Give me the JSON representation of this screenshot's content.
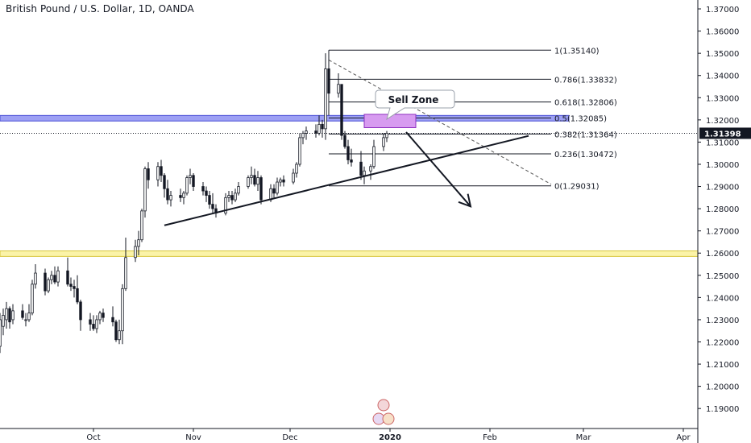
{
  "header": {
    "title": "British Pound / U.S. Dollar, 1D, OANDA"
  },
  "chart_data": {
    "type": "candlestick",
    "symbol": "GBPUSD",
    "interval": "1D",
    "source": "OANDA",
    "ylim": [
      1.181,
      1.374
    ],
    "y_ticks": [
      "1.19000",
      "1.20000",
      "1.21000",
      "1.22000",
      "1.23000",
      "1.24000",
      "1.25000",
      "1.26000",
      "1.27000",
      "1.28000",
      "1.29000",
      "1.30000",
      "1.31000",
      "1.32000",
      "1.33000",
      "1.34000",
      "1.35000",
      "1.36000",
      "1.37000"
    ],
    "x_ticks": [
      {
        "label": "Oct",
        "date": "2019-10-01",
        "bold": false
      },
      {
        "label": "Nov",
        "date": "2019-11-01",
        "bold": false
      },
      {
        "label": "Dec",
        "date": "2019-12-01",
        "bold": false
      },
      {
        "label": "2020",
        "date": "2020-01-01",
        "bold": true
      },
      {
        "label": "Feb",
        "date": "2020-02-01",
        "bold": false
      },
      {
        "label": "Mar",
        "date": "2020-03-01",
        "bold": false
      },
      {
        "label": "Apr",
        "date": "2020-04-01",
        "bold": false
      }
    ],
    "current_price": "1.31398",
    "candles": [
      {
        "d": "2019-08-30",
        "o": 1.215,
        "h": 1.224,
        "l": 1.206,
        "c": 1.222
      },
      {
        "d": "2019-09-02",
        "o": 1.218,
        "h": 1.233,
        "l": 1.215,
        "c": 1.23
      },
      {
        "d": "2019-09-03",
        "o": 1.227,
        "h": 1.235,
        "l": 1.223,
        "c": 1.232
      },
      {
        "d": "2019-09-04",
        "o": 1.23,
        "h": 1.238,
        "l": 1.226,
        "c": 1.235
      },
      {
        "d": "2019-09-05",
        "o": 1.235,
        "h": 1.236,
        "l": 1.226,
        "c": 1.229
      },
      {
        "d": "2019-09-06",
        "o": 1.23,
        "h": 1.237,
        "l": 1.228,
        "c": 1.234
      },
      {
        "d": "2019-09-09",
        "o": 1.234,
        "h": 1.237,
        "l": 1.23,
        "c": 1.231
      },
      {
        "d": "2019-09-10",
        "o": 1.23,
        "h": 1.233,
        "l": 1.227,
        "c": 1.23
      },
      {
        "d": "2019-09-11",
        "o": 1.23,
        "h": 1.237,
        "l": 1.229,
        "c": 1.233
      },
      {
        "d": "2019-09-12",
        "o": 1.233,
        "h": 1.248,
        "l": 1.232,
        "c": 1.246
      },
      {
        "d": "2019-09-13",
        "o": 1.246,
        "h": 1.255,
        "l": 1.244,
        "c": 1.251
      },
      {
        "d": "2019-09-16",
        "o": 1.251,
        "h": 1.253,
        "l": 1.241,
        "c": 1.243
      },
      {
        "d": "2019-09-17",
        "o": 1.243,
        "h": 1.249,
        "l": 1.242,
        "c": 1.248
      },
      {
        "d": "2019-09-18",
        "o": 1.248,
        "h": 1.252,
        "l": 1.246,
        "c": 1.25
      },
      {
        "d": "2019-09-19",
        "o": 1.25,
        "h": 1.254,
        "l": 1.246,
        "c": 1.247
      },
      {
        "d": "2019-09-20",
        "o": 1.247,
        "h": 1.254,
        "l": 1.245,
        "c": 1.252
      },
      {
        "d": "2019-09-23",
        "o": 1.252,
        "h": 1.258,
        "l": 1.245,
        "c": 1.246
      },
      {
        "d": "2019-09-24",
        "o": 1.246,
        "h": 1.249,
        "l": 1.243,
        "c": 1.245
      },
      {
        "d": "2019-09-25",
        "o": 1.245,
        "h": 1.248,
        "l": 1.24,
        "c": 1.244
      },
      {
        "d": "2019-09-26",
        "o": 1.244,
        "h": 1.25,
        "l": 1.237,
        "c": 1.238
      },
      {
        "d": "2019-09-27",
        "o": 1.238,
        "h": 1.239,
        "l": 1.225,
        "c": 1.23
      },
      {
        "d": "2019-09-30",
        "o": 1.23,
        "h": 1.233,
        "l": 1.225,
        "c": 1.228
      },
      {
        "d": "2019-10-01",
        "o": 1.228,
        "h": 1.232,
        "l": 1.225,
        "c": 1.226
      },
      {
        "d": "2019-10-02",
        "o": 1.226,
        "h": 1.232,
        "l": 1.224,
        "c": 1.23
      },
      {
        "d": "2019-10-03",
        "o": 1.23,
        "h": 1.234,
        "l": 1.228,
        "c": 1.233
      },
      {
        "d": "2019-10-04",
        "o": 1.233,
        "h": 1.235,
        "l": 1.229,
        "c": 1.231
      },
      {
        "d": "2019-10-07",
        "o": 1.231,
        "h": 1.236,
        "l": 1.227,
        "c": 1.229
      },
      {
        "d": "2019-10-08",
        "o": 1.229,
        "h": 1.23,
        "l": 1.22,
        "c": 1.221
      },
      {
        "d": "2019-10-09",
        "o": 1.221,
        "h": 1.23,
        "l": 1.219,
        "c": 1.225
      },
      {
        "d": "2019-10-10",
        "o": 1.225,
        "h": 1.246,
        "l": 1.219,
        "c": 1.244
      },
      {
        "d": "2019-10-11",
        "o": 1.244,
        "h": 1.267,
        "l": 1.243,
        "c": 1.258
      },
      {
        "d": "2019-10-14",
        "o": 1.258,
        "h": 1.266,
        "l": 1.256,
        "c": 1.263
      },
      {
        "d": "2019-10-15",
        "o": 1.263,
        "h": 1.27,
        "l": 1.259,
        "c": 1.266
      },
      {
        "d": "2019-10-16",
        "o": 1.266,
        "h": 1.28,
        "l": 1.265,
        "c": 1.279
      },
      {
        "d": "2019-10-17",
        "o": 1.279,
        "h": 1.299,
        "l": 1.276,
        "c": 1.298
      },
      {
        "d": "2019-10-18",
        "o": 1.298,
        "h": 1.301,
        "l": 1.289,
        "c": 1.293
      },
      {
        "d": "2019-10-21",
        "o": 1.293,
        "h": 1.301,
        "l": 1.29,
        "c": 1.299
      },
      {
        "d": "2019-10-22",
        "o": 1.299,
        "h": 1.302,
        "l": 1.292,
        "c": 1.295
      },
      {
        "d": "2019-10-23",
        "o": 1.295,
        "h": 1.296,
        "l": 1.285,
        "c": 1.289
      },
      {
        "d": "2019-10-24",
        "o": 1.289,
        "h": 1.293,
        "l": 1.282,
        "c": 1.284
      },
      {
        "d": "2019-10-25",
        "o": 1.284,
        "h": 1.288,
        "l": 1.281,
        "c": 1.286
      },
      {
        "d": "2019-10-28",
        "o": 1.286,
        "h": 1.289,
        "l": 1.283,
        "c": 1.285
      },
      {
        "d": "2019-10-29",
        "o": 1.285,
        "h": 1.288,
        "l": 1.282,
        "c": 1.287
      },
      {
        "d": "2019-10-30",
        "o": 1.287,
        "h": 1.295,
        "l": 1.286,
        "c": 1.294
      },
      {
        "d": "2019-10-31",
        "o": 1.294,
        "h": 1.298,
        "l": 1.291,
        "c": 1.295
      },
      {
        "d": "2019-11-01",
        "o": 1.295,
        "h": 1.296,
        "l": 1.288,
        "c": 1.29
      },
      {
        "d": "2019-11-04",
        "o": 1.29,
        "h": 1.292,
        "l": 1.286,
        "c": 1.288
      },
      {
        "d": "2019-11-05",
        "o": 1.288,
        "h": 1.29,
        "l": 1.283,
        "c": 1.286
      },
      {
        "d": "2019-11-06",
        "o": 1.286,
        "h": 1.288,
        "l": 1.28,
        "c": 1.282
      },
      {
        "d": "2019-11-07",
        "o": 1.282,
        "h": 1.287,
        "l": 1.278,
        "c": 1.28
      },
      {
        "d": "2019-11-08",
        "o": 1.28,
        "h": 1.282,
        "l": 1.276,
        "c": 1.278
      },
      {
        "d": "2019-11-11",
        "o": 1.278,
        "h": 1.287,
        "l": 1.277,
        "c": 1.285
      },
      {
        "d": "2019-11-12",
        "o": 1.285,
        "h": 1.288,
        "l": 1.283,
        "c": 1.286
      },
      {
        "d": "2019-11-13",
        "o": 1.286,
        "h": 1.288,
        "l": 1.282,
        "c": 1.284
      },
      {
        "d": "2019-11-14",
        "o": 1.284,
        "h": 1.289,
        "l": 1.283,
        "c": 1.287
      },
      {
        "d": "2019-11-15",
        "o": 1.287,
        "h": 1.292,
        "l": 1.286,
        "c": 1.29
      },
      {
        "d": "2019-11-18",
        "o": 1.29,
        "h": 1.295,
        "l": 1.289,
        "c": 1.294
      },
      {
        "d": "2019-11-19",
        "o": 1.294,
        "h": 1.299,
        "l": 1.291,
        "c": 1.295
      },
      {
        "d": "2019-11-20",
        "o": 1.295,
        "h": 1.298,
        "l": 1.29,
        "c": 1.291
      },
      {
        "d": "2019-11-21",
        "o": 1.291,
        "h": 1.297,
        "l": 1.288,
        "c": 1.294
      },
      {
        "d": "2019-11-22",
        "o": 1.294,
        "h": 1.295,
        "l": 1.282,
        "c": 1.284
      },
      {
        "d": "2019-11-25",
        "o": 1.284,
        "h": 1.291,
        "l": 1.283,
        "c": 1.289
      },
      {
        "d": "2019-11-26",
        "o": 1.289,
        "h": 1.291,
        "l": 1.285,
        "c": 1.287
      },
      {
        "d": "2019-11-27",
        "o": 1.287,
        "h": 1.294,
        "l": 1.286,
        "c": 1.292
      },
      {
        "d": "2019-11-28",
        "o": 1.292,
        "h": 1.294,
        "l": 1.29,
        "c": 1.293
      },
      {
        "d": "2019-11-29",
        "o": 1.293,
        "h": 1.295,
        "l": 1.29,
        "c": 1.292
      },
      {
        "d": "2019-12-02",
        "o": 1.292,
        "h": 1.298,
        "l": 1.291,
        "c": 1.296
      },
      {
        "d": "2019-12-03",
        "o": 1.296,
        "h": 1.301,
        "l": 1.294,
        "c": 1.3
      },
      {
        "d": "2019-12-04",
        "o": 1.3,
        "h": 1.314,
        "l": 1.299,
        "c": 1.312
      },
      {
        "d": "2019-12-05",
        "o": 1.312,
        "h": 1.315,
        "l": 1.309,
        "c": 1.314
      },
      {
        "d": "2019-12-06",
        "o": 1.314,
        "h": 1.317,
        "l": 1.311,
        "c": 1.315
      },
      {
        "d": "2019-12-09",
        "o": 1.315,
        "h": 1.318,
        "l": 1.312,
        "c": 1.314
      },
      {
        "d": "2019-12-10",
        "o": 1.314,
        "h": 1.322,
        "l": 1.313,
        "c": 1.318
      },
      {
        "d": "2019-12-11",
        "o": 1.318,
        "h": 1.32,
        "l": 1.312,
        "c": 1.316
      },
      {
        "d": "2019-12-12",
        "o": 1.316,
        "h": 1.35,
        "l": 1.311,
        "c": 1.343
      },
      {
        "d": "2019-12-13",
        "o": 1.343,
        "h": 1.3514,
        "l": 1.322,
        "c": 1.332
      },
      {
        "d": "2019-12-16",
        "o": 1.332,
        "h": 1.341,
        "l": 1.33,
        "c": 1.336
      },
      {
        "d": "2019-12-17",
        "o": 1.336,
        "h": 1.336,
        "l": 1.311,
        "c": 1.313
      },
      {
        "d": "2019-12-18",
        "o": 1.313,
        "h": 1.315,
        "l": 1.307,
        "c": 1.308
      },
      {
        "d": "2019-12-19",
        "o": 1.308,
        "h": 1.311,
        "l": 1.3,
        "c": 1.302
      },
      {
        "d": "2019-12-20",
        "o": 1.302,
        "h": 1.307,
        "l": 1.299,
        "c": 1.301
      },
      {
        "d": "2019-12-23",
        "o": 1.301,
        "h": 1.306,
        "l": 1.293,
        "c": 1.295
      },
      {
        "d": "2019-12-24",
        "o": 1.295,
        "h": 1.299,
        "l": 1.291,
        "c": 1.297
      },
      {
        "d": "2019-12-26",
        "o": 1.297,
        "h": 1.3,
        "l": 1.293,
        "c": 1.299
      },
      {
        "d": "2019-12-27",
        "o": 1.299,
        "h": 1.311,
        "l": 1.298,
        "c": 1.308
      },
      {
        "d": "2019-12-30",
        "o": 1.308,
        "h": 1.314,
        "l": 1.306,
        "c": 1.312
      },
      {
        "d": "2019-12-31",
        "o": 1.312,
        "h": 1.315,
        "l": 1.31,
        "c": 1.314
      }
    ],
    "fib_levels": [
      {
        "label": "1(1.35140)",
        "value": 1.3514
      },
      {
        "label": "0.786(1.33832)",
        "value": 1.33832
      },
      {
        "label": "0.618(1.32806)",
        "value": 1.32806
      },
      {
        "label": "0.5(1.32085)",
        "value": 1.32085
      },
      {
        "label": "0.382(1.31364)",
        "value": 1.31364
      },
      {
        "label": "0.236(1.30472)",
        "value": 1.30472
      },
      {
        "label": "0(1.29031)",
        "value": 1.29031
      }
    ],
    "fib_start": "2019-12-13",
    "fib_end": "2020-02-20",
    "resistance_zone": {
      "from": 1.3195,
      "to": 1.322,
      "color": "#8c8ff2"
    },
    "support_zone": {
      "from": 1.2585,
      "to": 1.261,
      "color": "#fbf3a8"
    },
    "sell_zone": {
      "label": "Sell Zone",
      "from_date": "2019-12-24",
      "to_date": "2020-01-09",
      "low": 1.3165,
      "high": 1.3225,
      "color": "#d79bf0"
    },
    "trendline_ascending": {
      "from": {
        "d": "2019-10-23",
        "v": 1.2725
      },
      "to": {
        "d": "2020-02-13",
        "v": 1.3128
      }
    },
    "trendline_dashed": {
      "from": {
        "d": "2019-12-13",
        "v": 1.347
      },
      "to": {
        "d": "2020-02-20",
        "v": 1.291
      }
    },
    "projection_arrow": {
      "from": {
        "d": "2020-01-06",
        "v": 1.3145
      },
      "to": {
        "d": "2020-01-26",
        "v": 1.281
      }
    },
    "colors": {
      "bull_body": "#ffffff",
      "bear_body": "#131722",
      "wick": "#131722",
      "axis_line": "#131722",
      "price_tag": "#131722",
      "fib_line": "#131722",
      "dashed": "#555555"
    }
  }
}
